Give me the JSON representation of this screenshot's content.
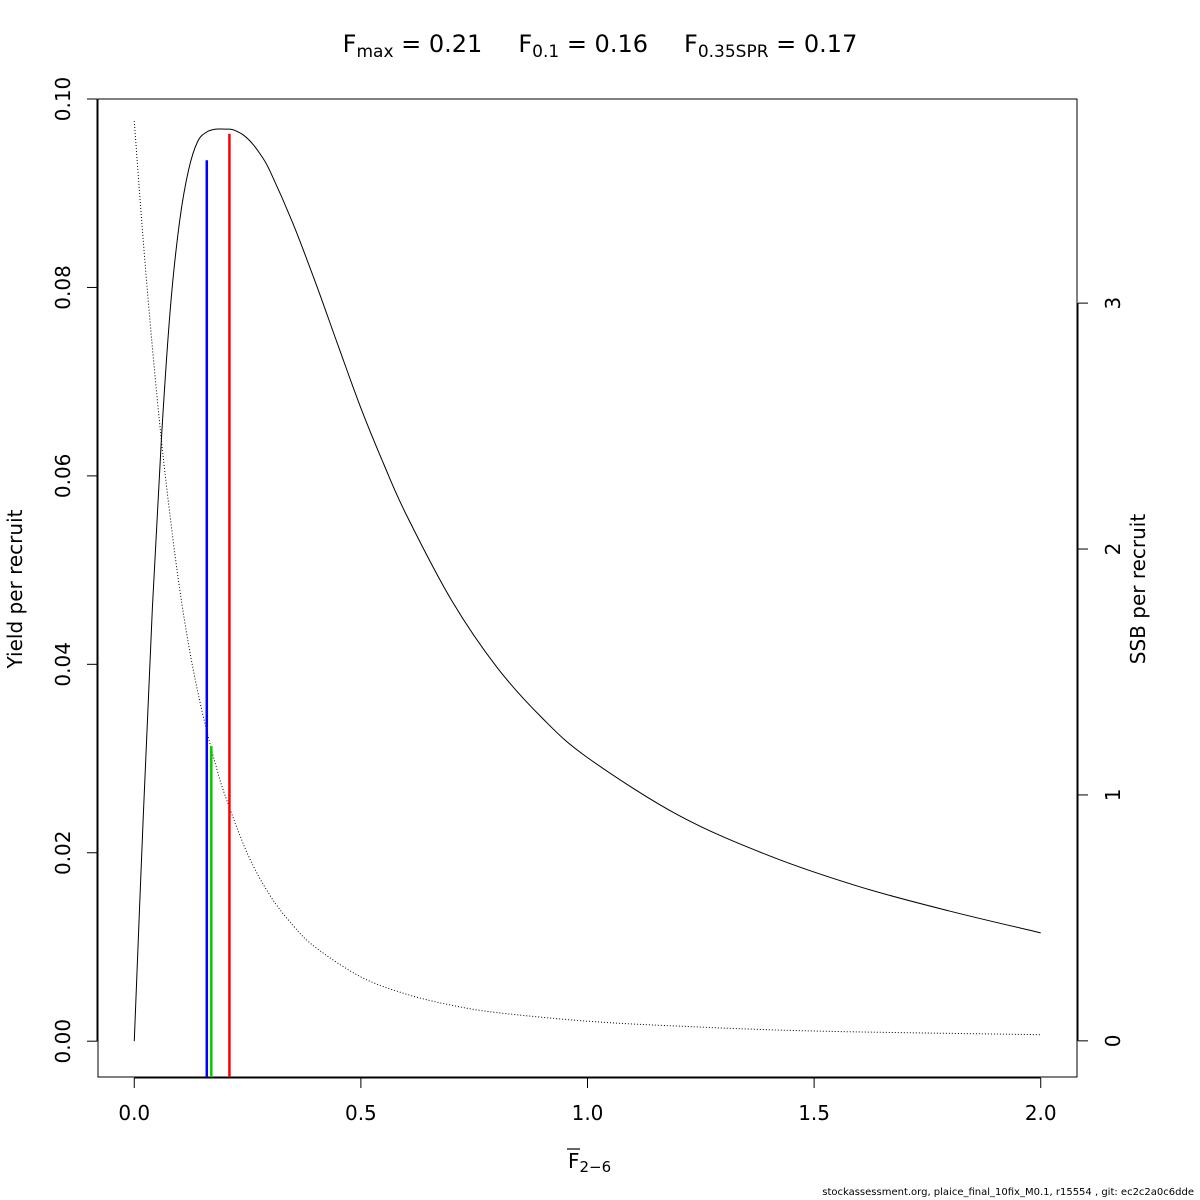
{
  "title": {
    "terms": [
      {
        "symbol": "F",
        "sub": "max",
        "eq": " = ",
        "value": "0.21"
      },
      {
        "symbol": "F",
        "sub": "0.1",
        "eq": " = ",
        "value": "0.16"
      },
      {
        "symbol": "F",
        "sub": "0.35SPR",
        "eq": " = ",
        "value": "0.17"
      }
    ]
  },
  "footer": "stockassessment.org, plaice_final_10fix_M0.1, r15554 , git: ec2c2a0c6dde",
  "chart_data": {
    "type": "line",
    "xlabel": "F",
    "xlabel_sub": "2−6",
    "ylabel": "Yield per recruit",
    "y2label": "SSB per recruit",
    "xlim": [
      -0.08,
      2.08
    ],
    "ylim": [
      -0.0038,
      0.1
    ],
    "y2lim": [
      -0.147,
      3.83
    ],
    "xticks": [
      "0.0",
      "0.5",
      "1.0",
      "1.5",
      "2.0"
    ],
    "yticks": [
      "0.00",
      "0.02",
      "0.04",
      "0.06",
      "0.08",
      "0.10"
    ],
    "y2ticks": [
      "0",
      "1",
      "2",
      "3"
    ],
    "series": [
      {
        "axis": "left",
        "style": "solid",
        "color": "#000000",
        "x": [
          0,
          0.02,
          0.04,
          0.06,
          0.08,
          0.1,
          0.12,
          0.14,
          0.16,
          0.18,
          0.2,
          0.21,
          0.22,
          0.24,
          0.26,
          0.28,
          0.3,
          0.35,
          0.4,
          0.45,
          0.5,
          0.55,
          0.6,
          0.7,
          0.8,
          0.9,
          1.0,
          1.2,
          1.4,
          1.6,
          1.8,
          2.0
        ],
        "y": [
          0,
          0.024,
          0.046,
          0.064,
          0.078,
          0.087,
          0.0925,
          0.0955,
          0.0965,
          0.0968,
          0.0968,
          0.0968,
          0.0967,
          0.0962,
          0.0953,
          0.094,
          0.0923,
          0.0868,
          0.0805,
          0.0738,
          0.0672,
          0.0613,
          0.0559,
          0.0468,
          0.0397,
          0.0343,
          0.0301,
          0.024,
          0.0197,
          0.0164,
          0.0138,
          0.0115
        ]
      },
      {
        "axis": "right",
        "style": "dotted",
        "color": "#000000",
        "x": [
          0,
          0.02,
          0.04,
          0.06,
          0.08,
          0.1,
          0.12,
          0.14,
          0.16,
          0.18,
          0.2,
          0.25,
          0.3,
          0.35,
          0.4,
          0.5,
          0.6,
          0.7,
          0.8,
          1.0,
          1.2,
          1.5,
          2.0
        ],
        "y": [
          3.74,
          3.25,
          2.82,
          2.44,
          2.12,
          1.84,
          1.61,
          1.42,
          1.26,
          1.12,
          1.0,
          0.76,
          0.59,
          0.47,
          0.38,
          0.26,
          0.19,
          0.145,
          0.115,
          0.08,
          0.06,
          0.04,
          0.025
        ]
      }
    ],
    "reference_lines": [
      {
        "name": "Fmax",
        "x": 0.21,
        "y_top": 0.0963,
        "color": "#ff0000"
      },
      {
        "name": "F0.1",
        "x": 0.16,
        "y_top": 0.0935,
        "color": "#0000ff"
      },
      {
        "name": "F0.35SPR",
        "x": 0.17,
        "y_top": 0.0313,
        "color": "#00cc00"
      }
    ]
  }
}
